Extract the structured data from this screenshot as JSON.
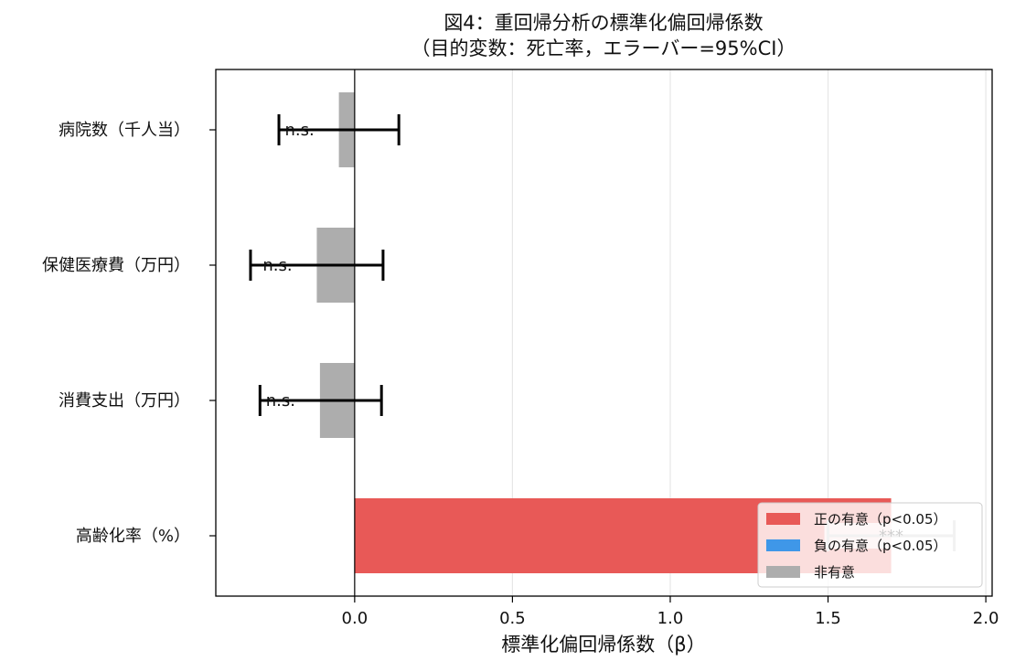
{
  "chart_data": {
    "type": "bar",
    "orientation": "horizontal",
    "title": "図4：重回帰分析の標準化偏回帰係数",
    "subtitle": "（目的変数：死亡率，エラーバー=95%CI）",
    "xlabel": "標準化偏回帰係数（β）",
    "ylabel": "",
    "xlim": [
      -0.44,
      2.02
    ],
    "xticks": [
      "0.0",
      "0.5",
      "1.0",
      "1.5",
      "2.0"
    ],
    "xtick_values": [
      0.0,
      0.5,
      1.0,
      1.5,
      2.0
    ],
    "grid": "vertical",
    "categories": [
      "病院数（千人当）",
      "保健医療費（万円）",
      "消費支出（万円）",
      "高齢化率（%）"
    ],
    "values": [
      -0.05,
      -0.12,
      -0.11,
      1.7
    ],
    "ci_low": [
      -0.24,
      -0.33,
      -0.3,
      1.5
    ],
    "ci_high": [
      0.14,
      0.09,
      0.085,
      1.9
    ],
    "significance": [
      "non",
      "non",
      "non",
      "pos"
    ],
    "annotations": [
      "n.s.",
      "n.s.",
      "n.s.",
      "***"
    ],
    "legend_position": "lower right",
    "legend": [
      {
        "label": "正の有意（p<0.05）",
        "color": "#e85957"
      },
      {
        "label": "負の有意（p<0.05）",
        "color": "#3f97e8"
      },
      {
        "label": "非有意",
        "color": "#adadad"
      }
    ],
    "colors": {
      "pos": "#e85957",
      "neg": "#3f97e8",
      "non": "#adadad"
    }
  }
}
